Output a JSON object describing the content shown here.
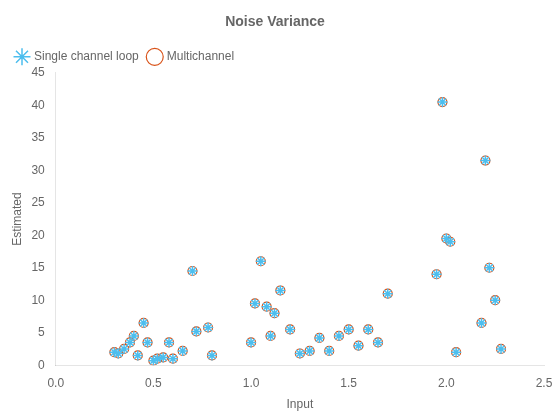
{
  "chart_data": {
    "type": "scatter",
    "title": "Noise Variance",
    "xlabel": "Input",
    "ylabel": "Estimated",
    "xlim": [
      0,
      2.5
    ],
    "ylim": [
      0,
      45
    ],
    "xticks": [
      {
        "value": 0,
        "label": "0.0"
      },
      {
        "value": 0.5,
        "label": "0.5"
      },
      {
        "value": 1.0,
        "label": "1.0"
      },
      {
        "value": 1.5,
        "label": "1.5"
      },
      {
        "value": 2.0,
        "label": "2.0"
      },
      {
        "value": 2.5,
        "label": "2.5"
      }
    ],
    "yticks": [
      0,
      5,
      10,
      15,
      20,
      25,
      30,
      35,
      40,
      45
    ],
    "grid": false,
    "legend": "upper left",
    "x": [
      0.3,
      0.32,
      0.35,
      0.38,
      0.4,
      0.42,
      0.45,
      0.47,
      0.5,
      0.52,
      0.55,
      0.58,
      0.6,
      0.65,
      0.7,
      0.72,
      0.78,
      0.8,
      1.0,
      1.02,
      1.05,
      1.08,
      1.1,
      1.12,
      1.15,
      1.2,
      1.25,
      1.3,
      1.35,
      1.4,
      1.45,
      1.5,
      1.55,
      1.6,
      1.65,
      1.7,
      1.95,
      1.98,
      2.0,
      2.02,
      2.05,
      2.18,
      2.2,
      2.22,
      2.25,
      2.28
    ],
    "series": [
      {
        "name": "Single channel loop",
        "color": "#4DBEEE",
        "marker": "star",
        "values": [
          2.0,
          1.8,
          2.5,
          3.5,
          4.5,
          1.5,
          6.5,
          3.5,
          0.7,
          1.0,
          1.2,
          3.5,
          1.0,
          2.2,
          14.5,
          5.2,
          5.8,
          1.5,
          3.5,
          9.5,
          16.0,
          9.0,
          4.5,
          8.0,
          11.5,
          5.5,
          1.8,
          2.2,
          4.2,
          2.2,
          4.5,
          5.5,
          3.0,
          5.5,
          3.5,
          11.0,
          14.0,
          40.5,
          19.5,
          19.0,
          2.0,
          6.5,
          31.5,
          15.0,
          10.0,
          2.5
        ]
      },
      {
        "name": "Multichannel",
        "color": "#D95319",
        "marker": "circle",
        "values": [
          2.0,
          1.8,
          2.5,
          3.5,
          4.5,
          1.5,
          6.5,
          3.5,
          0.7,
          1.0,
          1.2,
          3.5,
          1.0,
          2.2,
          14.5,
          5.2,
          5.8,
          1.5,
          3.5,
          9.5,
          16.0,
          9.0,
          4.5,
          8.0,
          11.5,
          5.5,
          1.8,
          2.2,
          4.2,
          2.2,
          4.5,
          5.5,
          3.0,
          5.5,
          3.5,
          11.0,
          14.0,
          40.5,
          19.5,
          19.0,
          2.0,
          6.5,
          31.5,
          15.0,
          10.0,
          2.5
        ]
      }
    ]
  }
}
